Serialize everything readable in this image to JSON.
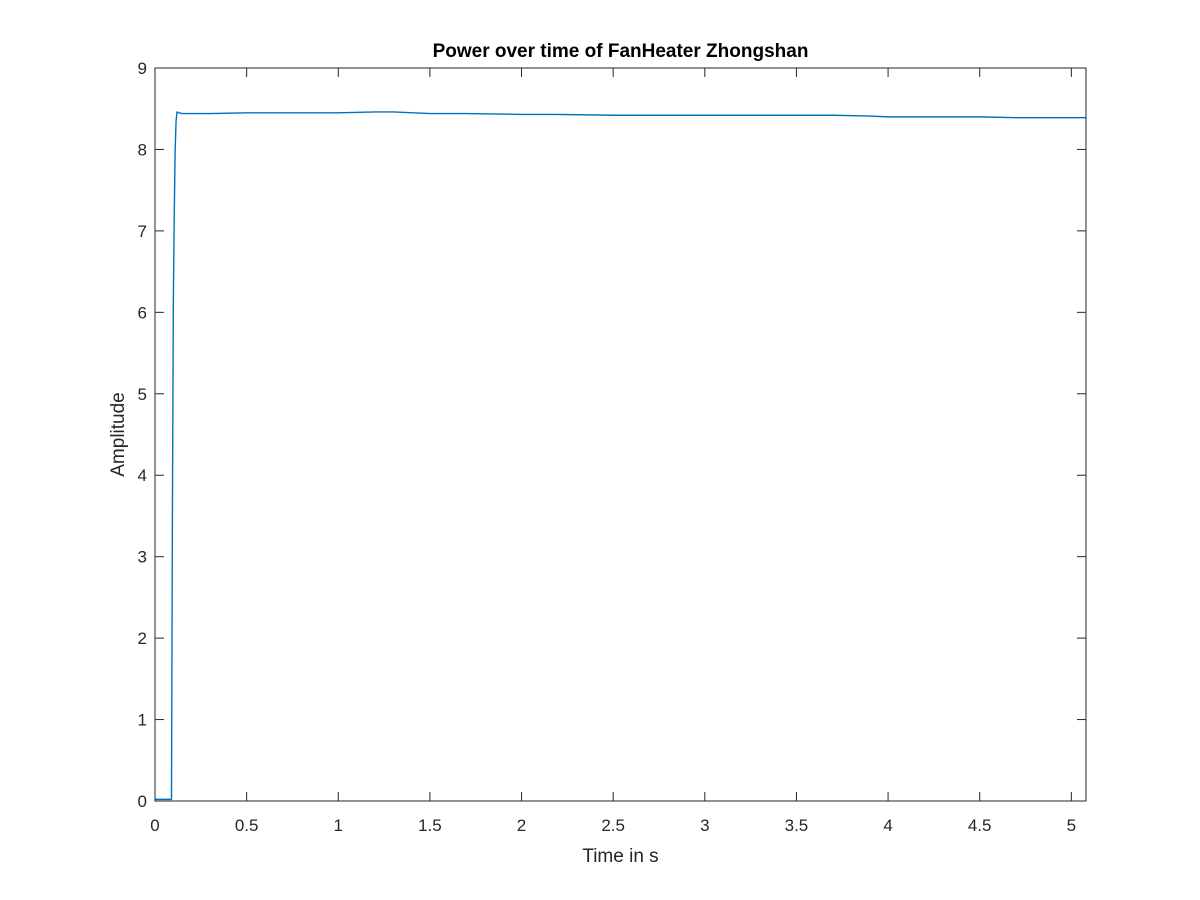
{
  "chart_data": {
    "type": "line",
    "title": "Power over time of FanHeater Zhongshan",
    "xlabel": "Time in s",
    "ylabel": "Amplitude",
    "xlim": [
      0,
      5.08
    ],
    "ylim": [
      0,
      9
    ],
    "xticks": [
      "0",
      "0.5",
      "1",
      "1.5",
      "2",
      "2.5",
      "3",
      "3.5",
      "4",
      "4.5",
      "5"
    ],
    "yticks": [
      "0",
      "1",
      "2",
      "3",
      "4",
      "5",
      "6",
      "7",
      "8",
      "9"
    ],
    "grid": false,
    "box": true,
    "series": [
      {
        "color": "#0072BD",
        "x": [
          0,
          0.05,
          0.09,
          0.095,
          0.1,
          0.105,
          0.11,
          0.115,
          0.12,
          0.13,
          0.15,
          0.2,
          0.3,
          0.5,
          0.7,
          1.0,
          1.2,
          1.3,
          1.5,
          1.7,
          2.0,
          2.2,
          2.5,
          2.8,
          3.0,
          3.3,
          3.5,
          3.7,
          3.9,
          4.0,
          4.2,
          4.5,
          4.7,
          4.9,
          5.0,
          5.08
        ],
        "y": [
          0.02,
          0.02,
          0.02,
          3.5,
          6.1,
          7.2,
          8.0,
          8.35,
          8.46,
          8.45,
          8.44,
          8.44,
          8.44,
          8.45,
          8.45,
          8.45,
          8.46,
          8.46,
          8.44,
          8.44,
          8.43,
          8.43,
          8.42,
          8.42,
          8.42,
          8.42,
          8.42,
          8.42,
          8.41,
          8.4,
          8.4,
          8.4,
          8.39,
          8.39,
          8.39,
          8.39
        ]
      }
    ]
  }
}
